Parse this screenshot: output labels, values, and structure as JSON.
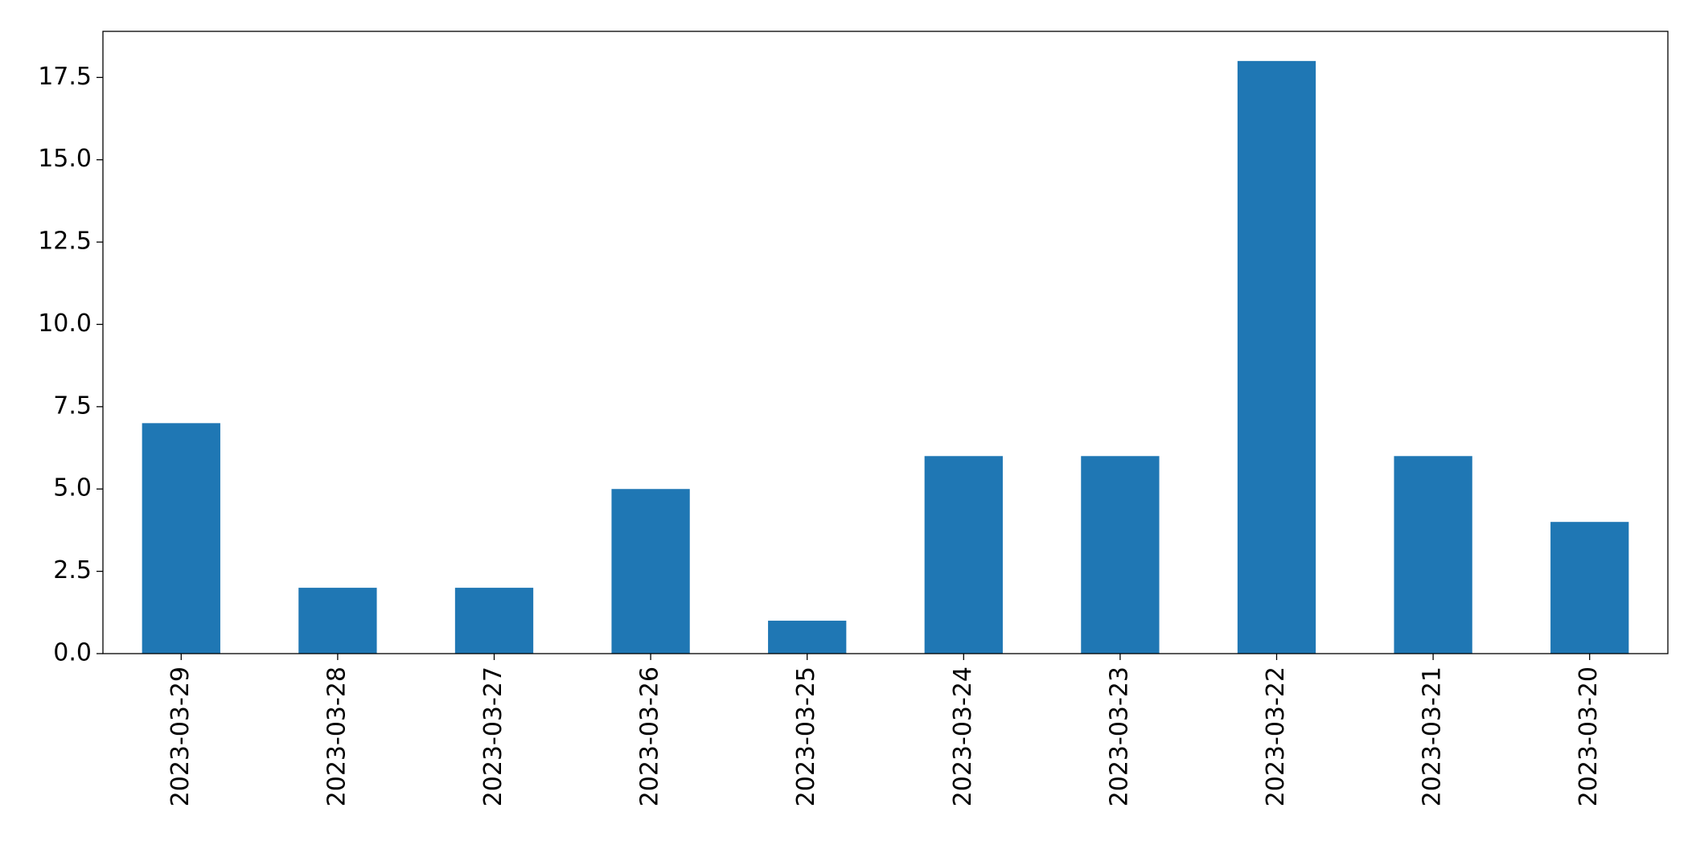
{
  "chart_data": {
    "type": "bar",
    "categories": [
      "2023-03-29",
      "2023-03-28",
      "2023-03-27",
      "2023-03-26",
      "2023-03-25",
      "2023-03-24",
      "2023-03-23",
      "2023-03-22",
      "2023-03-21",
      "2023-03-20"
    ],
    "values": [
      7,
      2,
      2,
      5,
      1,
      6,
      6,
      18,
      6,
      4
    ],
    "color": "#1f77b4",
    "ylim": [
      0,
      18.9
    ],
    "yticks": [
      {
        "value": 0,
        "label": "0.0"
      },
      2.5,
      {
        "value": 5,
        "label": "5.0"
      },
      7.5,
      {
        "value": 10,
        "label": "10.0"
      },
      12.5,
      {
        "value": 15,
        "label": "15.0"
      },
      17.5
    ],
    "grid": false
  }
}
